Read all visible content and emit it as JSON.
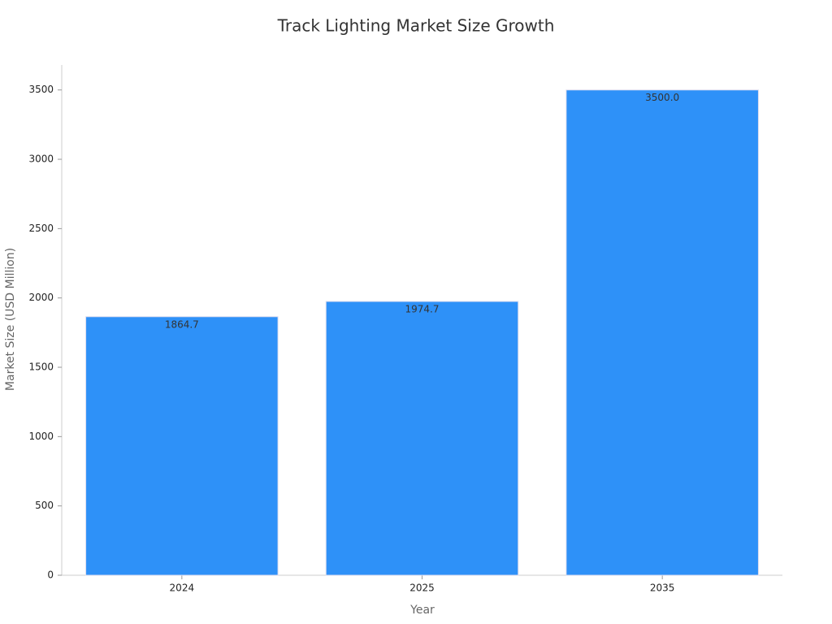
{
  "chart_data": {
    "type": "bar",
    "title": "Track Lighting Market Size Growth",
    "x_label": "Year",
    "y_label": "Market Size (USD Million)",
    "categories": [
      "2024",
      "2025",
      "2035"
    ],
    "values": [
      1864.7,
      1974.7,
      3500.0
    ],
    "value_labels": [
      "1864.7",
      "1974.7",
      "3500.0"
    ],
    "color": "#2e91f8",
    "ylim": [
      0,
      3680
    ],
    "yticks": [
      0,
      500,
      1000,
      1500,
      2000,
      2500,
      3000,
      3500
    ],
    "grid": false
  }
}
